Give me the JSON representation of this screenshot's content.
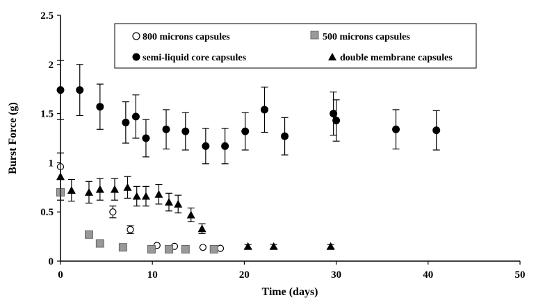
{
  "chart_data": {
    "type": "scatter",
    "xlabel": "Time (days)",
    "ylabel": "Burst Force (g)",
    "xlim": [
      0,
      50
    ],
    "ylim": [
      0,
      2.5
    ],
    "x_ticks": [
      "0",
      "10",
      "20",
      "30",
      "40",
      "50"
    ],
    "y_ticks": [
      "0",
      "0.5",
      "1",
      "1.5",
      "2",
      "2.5"
    ],
    "grid": false,
    "legend_position": "top-right",
    "series": [
      {
        "name": "800 microns capsules",
        "marker": "circle-open",
        "color": "#000000",
        "points": [
          {
            "x": 0,
            "y": 0.96,
            "err": 0
          },
          {
            "x": 5.7,
            "y": 0.5,
            "err": 0.06
          },
          {
            "x": 7.6,
            "y": 0.32,
            "err": 0.04
          },
          {
            "x": 10.5,
            "y": 0.16,
            "err": 0
          },
          {
            "x": 12.4,
            "y": 0.15,
            "err": 0
          },
          {
            "x": 15.5,
            "y": 0.14,
            "err": 0
          },
          {
            "x": 17.4,
            "y": 0.13,
            "err": 0
          }
        ]
      },
      {
        "name": "500 microns capsules",
        "marker": "square-gray",
        "color": "#999999",
        "points": [
          {
            "x": 0,
            "y": 0.7,
            "err": 0
          },
          {
            "x": 3.1,
            "y": 0.27,
            "err": 0
          },
          {
            "x": 4.3,
            "y": 0.18,
            "err": 0
          },
          {
            "x": 6.8,
            "y": 0.14,
            "err": 0
          },
          {
            "x": 9.9,
            "y": 0.12,
            "err": 0
          },
          {
            "x": 11.8,
            "y": 0.12,
            "err": 0
          },
          {
            "x": 13.6,
            "y": 0.12,
            "err": 0
          },
          {
            "x": 16.7,
            "y": 0.12,
            "err": 0
          }
        ]
      },
      {
        "name": "semi-liquid core capsules",
        "marker": "circle-filled",
        "color": "#000000",
        "points": [
          {
            "x": 0,
            "y": 1.74,
            "err": 0.3
          },
          {
            "x": 2.1,
            "y": 1.74,
            "err": 0.26
          },
          {
            "x": 4.3,
            "y": 1.57,
            "err": 0.23
          },
          {
            "x": 7.1,
            "y": 1.41,
            "err": 0.21
          },
          {
            "x": 8.2,
            "y": 1.47,
            "err": 0.22
          },
          {
            "x": 9.3,
            "y": 1.25,
            "err": 0.19
          },
          {
            "x": 11.5,
            "y": 1.34,
            "err": 0.2
          },
          {
            "x": 13.6,
            "y": 1.32,
            "err": 0.19
          },
          {
            "x": 15.8,
            "y": 1.17,
            "err": 0.18
          },
          {
            "x": 17.9,
            "y": 1.17,
            "err": 0.18
          },
          {
            "x": 20.1,
            "y": 1.32,
            "err": 0.19
          },
          {
            "x": 22.2,
            "y": 1.54,
            "err": 0.23
          },
          {
            "x": 24.4,
            "y": 1.27,
            "err": 0.19
          },
          {
            "x": 29.7,
            "y": 1.5,
            "err": 0.22
          },
          {
            "x": 30.0,
            "y": 1.43,
            "err": 0.21
          },
          {
            "x": 36.5,
            "y": 1.34,
            "err": 0.2
          },
          {
            "x": 40.9,
            "y": 1.33,
            "err": 0.2
          }
        ]
      },
      {
        "name": "double membrane capsules",
        "marker": "triangle-filled",
        "color": "#000000",
        "points": [
          {
            "x": 0,
            "y": 0.86,
            "err": 0.24
          },
          {
            "x": 1.2,
            "y": 0.72,
            "err": 0.11
          },
          {
            "x": 3.1,
            "y": 0.7,
            "err": 0.11
          },
          {
            "x": 4.3,
            "y": 0.73,
            "err": 0.11
          },
          {
            "x": 5.9,
            "y": 0.73,
            "err": 0.11
          },
          {
            "x": 7.3,
            "y": 0.75,
            "err": 0.11
          },
          {
            "x": 8.3,
            "y": 0.66,
            "err": 0.1
          },
          {
            "x": 9.3,
            "y": 0.66,
            "err": 0.1
          },
          {
            "x": 10.7,
            "y": 0.68,
            "err": 0.1
          },
          {
            "x": 11.8,
            "y": 0.6,
            "err": 0.09
          },
          {
            "x": 12.8,
            "y": 0.58,
            "err": 0.09
          },
          {
            "x": 14.2,
            "y": 0.47,
            "err": 0.07
          },
          {
            "x": 15.4,
            "y": 0.33,
            "err": 0.05
          },
          {
            "x": 20.4,
            "y": 0.15,
            "err": 0.02
          },
          {
            "x": 23.2,
            "y": 0.15,
            "err": 0.02
          },
          {
            "x": 29.4,
            "y": 0.15,
            "err": 0.02
          }
        ]
      }
    ]
  }
}
